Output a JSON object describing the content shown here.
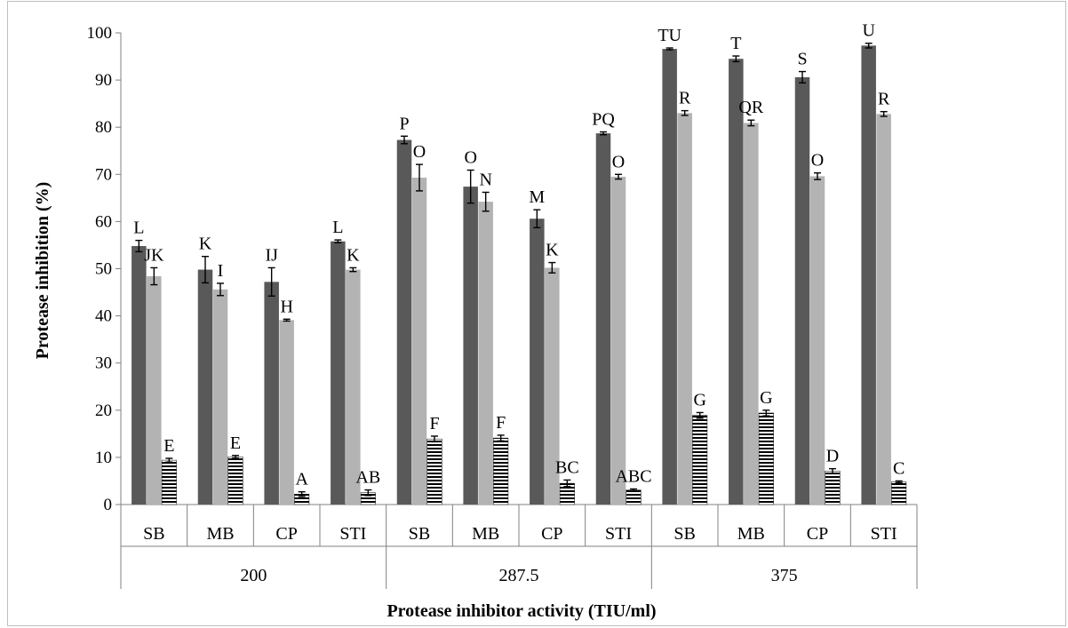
{
  "chart_data": {
    "type": "bar",
    "title": "",
    "xlabel": "Protease inhibitor activity (TIU/ml)",
    "ylabel": "Protease inhibition (%)",
    "ylim": [
      0,
      100
    ],
    "yticks": [
      0,
      10,
      20,
      30,
      40,
      50,
      60,
      70,
      80,
      90,
      100
    ],
    "grid": false,
    "legend": "none",
    "groups": [
      "200",
      "287.5",
      "375"
    ],
    "subcategories": [
      "SB",
      "MB",
      "CP",
      "STI"
    ],
    "categories": [
      "SB",
      "MB",
      "CP",
      "STI",
      "SB",
      "MB",
      "CP",
      "STI",
      "SB",
      "MB",
      "CP",
      "STI"
    ],
    "series": [
      {
        "color": "#595959",
        "pattern": "solid",
        "values": [
          54.8,
          49.8,
          47.2,
          55.8,
          77.3,
          67.4,
          60.6,
          78.7,
          96.6,
          94.5,
          90.6,
          97.3
        ],
        "errors": [
          1.2,
          2.8,
          3.0,
          0.3,
          0.8,
          3.5,
          1.9,
          0.3,
          0.2,
          0.6,
          1.2,
          0.5
        ],
        "labels": [
          "L",
          "K",
          "IJ",
          "L",
          "P",
          "O",
          "M",
          "PQ",
          "TU",
          "T",
          "S",
          "U"
        ]
      },
      {
        "color": "#b3b3b3",
        "pattern": "solid",
        "values": [
          48.4,
          45.6,
          39.1,
          49.8,
          69.3,
          64.2,
          50.2,
          69.5,
          83.0,
          80.9,
          69.6,
          82.8
        ],
        "errors": [
          1.8,
          1.3,
          0.2,
          0.4,
          2.8,
          2.0,
          1.1,
          0.5,
          0.5,
          0.6,
          0.7,
          0.5
        ],
        "labels": [
          "JK",
          "I",
          "H",
          "K",
          "O",
          "N",
          "K",
          "O",
          "R",
          "QR",
          "O",
          "R"
        ]
      },
      {
        "color": "#000000",
        "pattern": "horizontal-stripes",
        "values": [
          9.4,
          10.1,
          2.2,
          2.5,
          13.9,
          14.1,
          4.5,
          3.1,
          18.9,
          19.4,
          7.1,
          4.8
        ],
        "errors": [
          0.4,
          0.3,
          0.5,
          0.6,
          0.6,
          0.6,
          0.7,
          0.2,
          0.6,
          0.6,
          0.5,
          0.2
        ],
        "labels": [
          "E",
          "E",
          "A",
          "AB",
          "F",
          "F",
          "BC",
          "ABC",
          "G",
          "G",
          "D",
          "C"
        ]
      }
    ]
  }
}
